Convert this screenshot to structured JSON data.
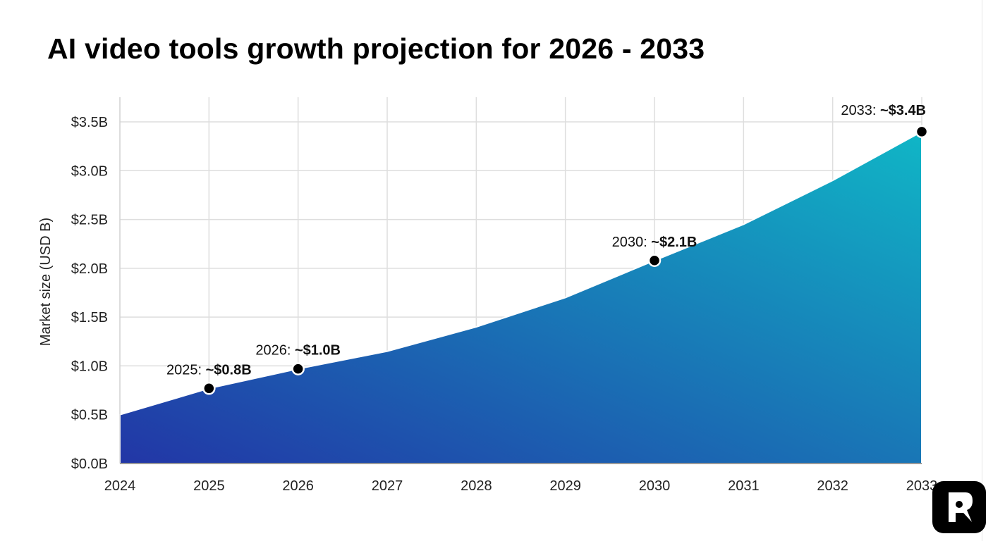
{
  "chart_data": {
    "type": "area",
    "title": "AI video tools growth projection for 2026 - 2033",
    "xlabel": "",
    "ylabel": "Market size (USD B)",
    "x": [
      2024,
      2025,
      2026,
      2027,
      2028,
      2029,
      2030,
      2031,
      2032,
      2033
    ],
    "values": [
      0.5,
      0.77,
      0.97,
      1.15,
      1.4,
      1.7,
      2.08,
      2.45,
      2.9,
      3.4
    ],
    "ylim": [
      0,
      3.5
    ],
    "yticks": [
      0,
      0.5,
      1.0,
      1.5,
      2.0,
      2.5,
      3.0,
      3.5
    ],
    "ytick_labels": [
      "$0.0B",
      "$0.5B",
      "$1.0B",
      "$1.5B",
      "$2.0B",
      "$2.5B",
      "$3.0B",
      "$3.5B"
    ],
    "xtick_labels": [
      "2024",
      "2025",
      "2026",
      "2027",
      "2028",
      "2029",
      "2030",
      "2031",
      "2032",
      "2033"
    ],
    "grid": true,
    "colors": {
      "fill_bottom": "#2236a6",
      "fill_top": "#10b6c6",
      "marker": "#000000"
    },
    "annotations": [
      {
        "x": 2025,
        "y": 0.77,
        "prefix": "2025: ",
        "value": "~$0.8B"
      },
      {
        "x": 2026,
        "y": 0.97,
        "prefix": "2026: ",
        "value": "~$1.0B"
      },
      {
        "x": 2030,
        "y": 2.08,
        "prefix": "2030: ",
        "value": "~$2.1B"
      },
      {
        "x": 2033,
        "y": 3.4,
        "prefix": "2033: ",
        "value": "~$3.4B"
      }
    ]
  },
  "logo": {
    "name": "R-logo-icon",
    "text": "R"
  }
}
